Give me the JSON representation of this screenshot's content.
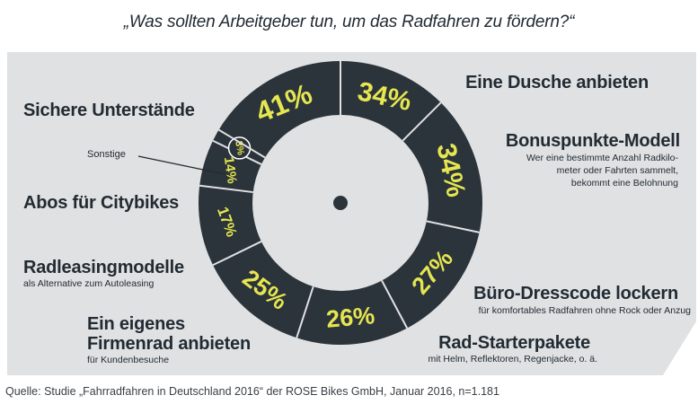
{
  "title": "„Was sollten Arbeitgeber tun, um das Radfahren zu fördern?“",
  "source": "Quelle: Studie „Fahrradfahren in Deutschland 2016“ der ROSE Bikes GmbH, Januar 2016, n=1.181",
  "colors": {
    "panel": "#dfe1e2",
    "ring": "#2b333b",
    "value_text": "#e5e650",
    "text": "#222b33"
  },
  "chart_data": {
    "type": "radial",
    "title": "„Was sollten Arbeitgeber tun, um das Radfahren zu fördern?“",
    "unit": "%",
    "segments": [
      {
        "label": "Eine Dusche anbieten",
        "sublabel": "",
        "value": 34,
        "value_text": "34%"
      },
      {
        "label": "Bonuspunkte-Modell",
        "sublabel": "Wer eine bestimmte Anzahl Radkilo-meter oder Fahrten sammelt, bekommt eine Belohnung",
        "sublabel_lines": [
          "Wer eine bestimmte Anzahl Radkilo-",
          "meter oder Fahrten sammelt,",
          "bekommt eine Belohnung"
        ],
        "value": 34,
        "value_text": "34%"
      },
      {
        "label": "Büro-Dresscode lockern",
        "sublabel": "für komfortables Radfahren ohne Rock oder Anzug",
        "value": 27,
        "value_text": "27%"
      },
      {
        "label": "Rad-Starterpakete",
        "sublabel": "mit Helm, Reflektoren, Regenjacke, o. ä.",
        "value": 26,
        "value_text": "26%"
      },
      {
        "label": "Ein eigenes Firmenrad anbieten",
        "label_lines": [
          "Ein eigenes",
          "Firmenrad anbieten"
        ],
        "sublabel": "für Kundenbesuche",
        "value": 25,
        "value_text": "25%"
      },
      {
        "label": "Radleasingmodelle",
        "sublabel": "als Alternative zum Autoleasing",
        "value": 17,
        "value_text": "17%"
      },
      {
        "label": "Abos für Citybikes",
        "sublabel": "",
        "value": 14,
        "value_text": "14%"
      },
      {
        "label": "Sonstige",
        "sublabel": "",
        "value": 3,
        "value_text": "3%"
      },
      {
        "label": "Sichere Unterstände",
        "sublabel": "",
        "value": 41,
        "value_text": "41%"
      }
    ]
  }
}
